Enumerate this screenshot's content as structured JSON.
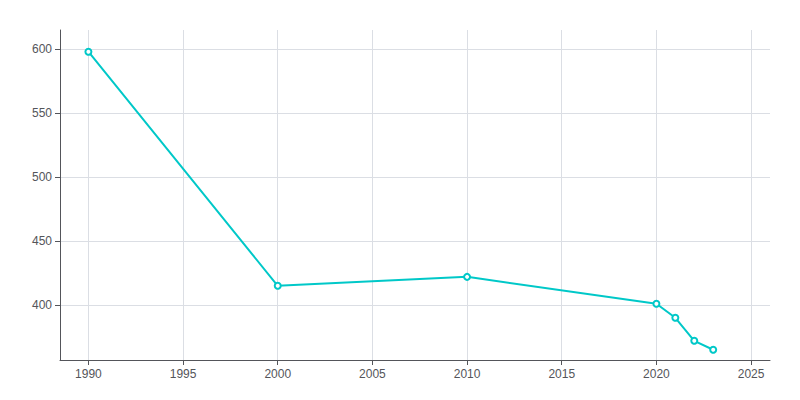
{
  "chart_data": {
    "type": "line",
    "x": [
      1990,
      2000,
      2010,
      2020,
      2021,
      2022,
      2023
    ],
    "values": [
      598,
      415,
      422,
      401,
      390,
      372,
      365
    ],
    "color": "#00c8c8",
    "xlim": [
      1988.5,
      2026
    ],
    "xticks": [
      1990,
      1995,
      2000,
      2005,
      2010,
      2015,
      2020,
      2025
    ],
    "ylim": [
      357,
      615
    ],
    "yticks": [
      400,
      450,
      500,
      550,
      600
    ],
    "grid": true
  }
}
